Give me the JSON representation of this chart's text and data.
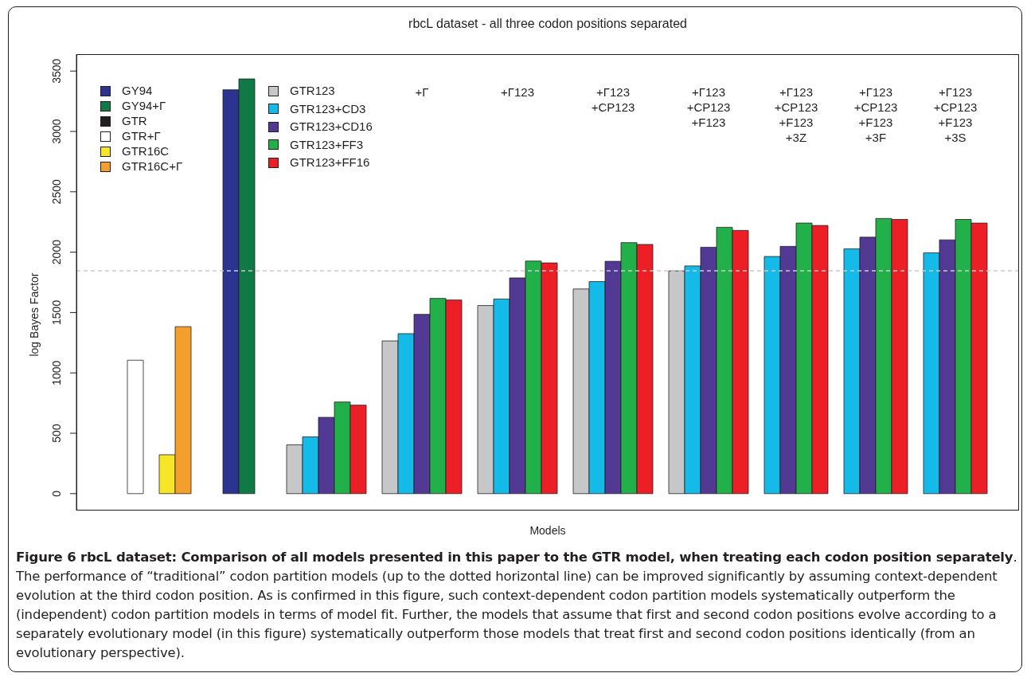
{
  "chart_data": {
    "type": "bar",
    "title": "rbcL dataset - all three codon positions separated",
    "xlabel": "Models",
    "ylabel": "log Bayes Factor",
    "stacked": true,
    "legend": "top left",
    "grid": false,
    "tick_labels": "y",
    "categories": [
      null,
      null,
      null,
      null,
      null,
      null,
      null,
      null,
      null,
      null,
      null,
      null,
      null,
      null,
      null,
      null,
      null,
      null,
      null,
      null,
      null,
      null,
      null,
      null,
      null,
      null,
      null,
      null,
      null,
      null,
      null,
      null,
      null,
      null,
      null,
      null,
      null,
      null,
      null,
      null,
      null,
      null,
      null,
      null,
      null,
      null,
      null,
      null,
      null,
      null,
      null,
      null,
      null,
      null,
      null,
      null,
      null,
      null,
      null
    ],
    "ylim": [
      -140,
      3640
    ],
    "yticks": [
      0,
      500,
      1000,
      1500,
      2000,
      2500,
      3000,
      3500
    ],
    "ref_lines": [
      {
        "axis": "y",
        "value": 1845,
        "color": "#cccccc",
        "line_style": "dashed"
      }
    ],
    "series": [
      {
        "name": "GY94",
        "color": "#2b3490",
        "values": [
          null,
          null,
          null,
          null,
          null,
          null,
          null,
          null,
          null,
          3345,
          null,
          null,
          null,
          null,
          null,
          null,
          null,
          null,
          null,
          null,
          null,
          null,
          null,
          null,
          null,
          null,
          null,
          null,
          null,
          null,
          null,
          null,
          null,
          null,
          null,
          null,
          null,
          null,
          null,
          null,
          null,
          null,
          null,
          null,
          null,
          null,
          null,
          null,
          null,
          null,
          null,
          null,
          null,
          null,
          null,
          null,
          null,
          null,
          null
        ]
      },
      {
        "name": "GY94+Γ",
        "color": "#0f7a46",
        "values": [
          null,
          null,
          null,
          null,
          null,
          null,
          null,
          null,
          null,
          null,
          3435,
          null,
          null,
          null,
          null,
          null,
          null,
          null,
          null,
          null,
          null,
          null,
          null,
          null,
          null,
          null,
          null,
          null,
          null,
          null,
          null,
          null,
          null,
          null,
          null,
          null,
          null,
          null,
          null,
          null,
          null,
          null,
          null,
          null,
          null,
          null,
          null,
          null,
          null,
          null,
          null,
          null,
          null,
          null,
          null,
          null,
          null,
          null,
          null
        ]
      },
      {
        "name": "GTR",
        "color": "#231f20",
        "values": [
          null,
          null,
          0,
          null,
          null,
          null,
          null,
          null,
          null,
          null,
          null,
          null,
          null,
          null,
          null,
          null,
          null,
          null,
          null,
          null,
          null,
          null,
          null,
          null,
          null,
          null,
          null,
          null,
          null,
          null,
          null,
          null,
          null,
          null,
          null,
          null,
          null,
          null,
          null,
          null,
          null,
          null,
          null,
          null,
          null,
          null,
          null,
          null,
          null,
          null,
          null,
          null,
          null,
          null,
          null,
          null,
          null,
          null,
          null
        ]
      },
      {
        "name": "GTR+Γ",
        "color": "#ffffff",
        "values": [
          null,
          null,
          null,
          1105,
          null,
          null,
          null,
          null,
          null,
          null,
          null,
          null,
          null,
          null,
          null,
          null,
          null,
          null,
          null,
          null,
          null,
          null,
          null,
          null,
          null,
          null,
          null,
          null,
          null,
          null,
          null,
          null,
          null,
          null,
          null,
          null,
          null,
          null,
          null,
          null,
          null,
          null,
          null,
          null,
          null,
          null,
          null,
          null,
          null,
          null,
          null,
          null,
          null,
          null,
          null,
          null,
          null,
          null,
          null
        ]
      },
      {
        "name": "GTR16C",
        "color": "#f7e628",
        "values": [
          null,
          null,
          null,
          null,
          null,
          322,
          null,
          null,
          null,
          null,
          null,
          null,
          null,
          null,
          null,
          null,
          null,
          null,
          null,
          null,
          null,
          null,
          null,
          null,
          null,
          null,
          null,
          null,
          null,
          null,
          null,
          null,
          null,
          null,
          null,
          null,
          null,
          null,
          null,
          null,
          null,
          null,
          null,
          null,
          null,
          null,
          null,
          null,
          null,
          null,
          null,
          null,
          null,
          null,
          null,
          null,
          null,
          null,
          null
        ]
      },
      {
        "name": "GTR16C+Γ",
        "color": "#f49f2b",
        "values": [
          null,
          null,
          null,
          null,
          null,
          null,
          1383,
          null,
          null,
          null,
          null,
          null,
          null,
          null,
          null,
          null,
          null,
          null,
          null,
          null,
          null,
          null,
          null,
          null,
          null,
          null,
          null,
          null,
          null,
          null,
          null,
          null,
          null,
          null,
          null,
          null,
          null,
          null,
          null,
          null,
          null,
          null,
          null,
          null,
          null,
          null,
          null,
          null,
          null,
          null,
          null,
          null,
          null,
          null,
          null,
          null,
          null,
          null,
          null
        ]
      },
      {
        "name": "GTR123",
        "color": "#c6c7c9",
        "values": [
          null,
          null,
          null,
          null,
          null,
          null,
          null,
          null,
          null,
          null,
          null,
          null,
          null,
          404,
          null,
          null,
          null,
          null,
          null,
          1265,
          null,
          null,
          null,
          null,
          null,
          1558,
          null,
          null,
          null,
          null,
          null,
          1695,
          null,
          null,
          null,
          null,
          null,
          1845,
          null,
          null,
          null,
          null,
          null,
          null,
          null,
          null,
          null,
          null,
          null,
          null,
          null,
          null,
          null,
          null,
          null,
          null,
          null,
          null,
          null
        ]
      },
      {
        "name": "GTR123+CD3",
        "color": "#14bbe8",
        "values": [
          null,
          null,
          null,
          null,
          null,
          null,
          null,
          null,
          null,
          null,
          null,
          null,
          null,
          null,
          470,
          null,
          null,
          null,
          null,
          null,
          1325,
          null,
          null,
          null,
          null,
          null,
          1612,
          null,
          null,
          null,
          null,
          null,
          1756,
          null,
          null,
          null,
          null,
          null,
          1886,
          null,
          null,
          null,
          null,
          1964,
          null,
          null,
          null,
          null,
          2028,
          null,
          null,
          null,
          null,
          1995,
          null,
          null,
          null,
          null,
          null
        ]
      },
      {
        "name": "GTR123+CD16",
        "color": "#523a94",
        "values": [
          null,
          null,
          null,
          null,
          null,
          null,
          null,
          null,
          null,
          null,
          null,
          null,
          null,
          null,
          null,
          632,
          null,
          null,
          null,
          null,
          null,
          1485,
          null,
          null,
          null,
          null,
          null,
          1787,
          null,
          null,
          null,
          null,
          null,
          1924,
          null,
          null,
          null,
          null,
          null,
          2041,
          null,
          null,
          null,
          null,
          2048,
          null,
          null,
          null,
          null,
          2124,
          null,
          null,
          null,
          null,
          2102,
          null,
          null,
          null,
          null
        ]
      },
      {
        "name": "GTR123+FF3",
        "color": "#22b04b",
        "values": [
          null,
          null,
          null,
          null,
          null,
          null,
          null,
          null,
          null,
          null,
          null,
          null,
          null,
          null,
          null,
          null,
          759,
          null,
          null,
          null,
          null,
          null,
          1617,
          null,
          null,
          null,
          null,
          null,
          1926,
          null,
          null,
          null,
          null,
          null,
          2079,
          null,
          null,
          null,
          null,
          null,
          2206,
          null,
          null,
          null,
          null,
          2241,
          null,
          null,
          null,
          null,
          2279,
          null,
          null,
          null,
          null,
          2271,
          null,
          null,
          null
        ]
      },
      {
        "name": "GTR123+FF16",
        "color": "#ec1f27",
        "values": [
          null,
          null,
          null,
          null,
          null,
          null,
          null,
          null,
          null,
          null,
          null,
          null,
          null,
          null,
          null,
          null,
          null,
          733,
          null,
          null,
          null,
          null,
          null,
          1604,
          null,
          null,
          null,
          null,
          null,
          1911,
          null,
          null,
          null,
          null,
          null,
          2064,
          null,
          null,
          null,
          null,
          null,
          2180,
          null,
          null,
          null,
          null,
          2221,
          null,
          null,
          null,
          null,
          2271,
          null,
          null,
          null,
          null,
          2241,
          null,
          null
        ]
      }
    ],
    "annotations": [
      {
        "text": "+Γ"
      },
      {
        "text": "+Γ123"
      },
      {
        "text": "+Γ123\n+CP123"
      },
      {
        "text": "+Γ123\n+CP123\n+F123"
      },
      {
        "text": "+Γ123\n+CP123\n+F123\n+3Z"
      },
      {
        "text": "+Γ123\n+CP123\n+F123\n+3F"
      },
      {
        "text": "+Γ123\n+CP123\n+F123\n+3S"
      },
      "Figure 6 rbcL dataset: Comparison of all models presented in this paper to the GTR model, when treating each codon position separately",
      ". The performance of “traditional” codon partition models (up to the dotted horizontal line) can be improved significantly by assuming context-dependent evolution at the third codon position. As is confirmed in this figure, such context-dependent codon partition models systematically outperform the (independent) codon partition models in terms of model fit. Further, the models that assume that first and second codon positions evolve according to a separately evolutionary model (in this figure) systematically outperform those models that treat first and second codon positions identically (from an evolutionary perspective)."
    ]
  }
}
